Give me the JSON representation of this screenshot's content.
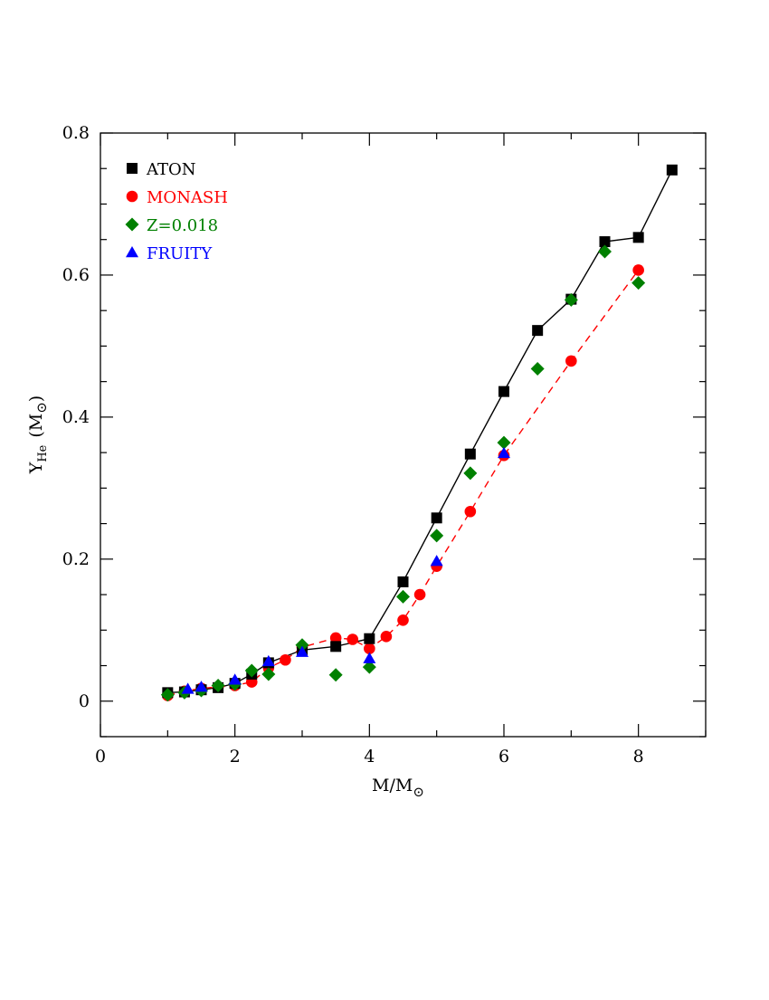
{
  "chart_data": {
    "type": "scatter",
    "title": "",
    "xlabel": "M/M",
    "xlabel_symbol": "⊙",
    "ylabel": "Y",
    "ylabel_sub": "He",
    "ylabel_unit_open": "(M",
    "ylabel_unit_symbol": "⊙",
    "ylabel_unit_close": ")",
    "xlim": [
      0,
      9
    ],
    "ylim": [
      -0.05,
      0.8
    ],
    "xticks": [
      {
        "value": 0,
        "label": "0"
      },
      {
        "value": 2,
        "label": "2"
      },
      {
        "value": 4,
        "label": "4"
      },
      {
        "value": 6,
        "label": "6"
      },
      {
        "value": 8,
        "label": "8"
      }
    ],
    "yticks": [
      {
        "value": 0,
        "label": "0"
      },
      {
        "value": 0.2,
        "label": "0.2"
      },
      {
        "value": 0.4,
        "label": "0.4"
      },
      {
        "value": 0.6,
        "label": "0.6"
      },
      {
        "value": 0.8,
        "label": "0.8"
      }
    ],
    "grid": false,
    "legend_position": "top-left",
    "series": [
      {
        "name": "ATON",
        "marker": "square",
        "color": "#000000",
        "line": "solid",
        "x": [
          1.0,
          1.25,
          1.5,
          1.75,
          2.0,
          2.25,
          2.5,
          3.0,
          3.5,
          4.0,
          4.5,
          5.0,
          5.5,
          6.0,
          6.5,
          7.0,
          7.5,
          8.0,
          8.5
        ],
        "y": [
          0.012,
          0.013,
          0.016,
          0.019,
          0.025,
          0.038,
          0.054,
          0.072,
          0.077,
          0.088,
          0.168,
          0.258,
          0.348,
          0.436,
          0.522,
          0.566,
          0.647,
          0.653,
          0.748
        ]
      },
      {
        "name": "MONASH",
        "marker": "circle",
        "color": "#ff0000",
        "line": "dashed",
        "x": [
          1.0,
          1.25,
          1.5,
          1.75,
          2.0,
          2.25,
          2.5,
          2.75,
          3.0,
          3.5,
          3.75,
          4.0,
          4.25,
          4.5,
          4.75,
          5.0,
          5.5,
          6.0,
          7.0,
          8.0
        ],
        "y": [
          0.008,
          0.014,
          0.018,
          0.02,
          0.022,
          0.027,
          0.047,
          0.058,
          0.076,
          0.089,
          0.087,
          0.074,
          0.091,
          0.114,
          0.15,
          0.19,
          0.267,
          0.346,
          0.479,
          0.607
        ]
      },
      {
        "name": "Z=0.018",
        "marker": "diamond",
        "color": "#008000",
        "line": "none",
        "x": [
          1.0,
          1.25,
          1.5,
          1.75,
          2.0,
          2.25,
          2.5,
          3.0,
          3.5,
          4.0,
          4.5,
          5.0,
          5.5,
          6.0,
          6.5,
          7.0,
          7.5,
          8.0
        ],
        "y": [
          0.009,
          0.012,
          0.015,
          0.022,
          0.024,
          0.043,
          0.038,
          0.079,
          0.037,
          0.048,
          0.147,
          0.233,
          0.321,
          0.364,
          0.468,
          0.565,
          0.633,
          0.589
        ]
      },
      {
        "name": "FRUITY",
        "marker": "triangle",
        "color": "#0000ff",
        "line": "none",
        "x": [
          1.3,
          1.5,
          2.0,
          2.5,
          3.0,
          4.0,
          5.0,
          6.0
        ],
        "y": [
          0.017,
          0.02,
          0.03,
          0.056,
          0.069,
          0.06,
          0.197,
          0.349
        ]
      }
    ]
  }
}
